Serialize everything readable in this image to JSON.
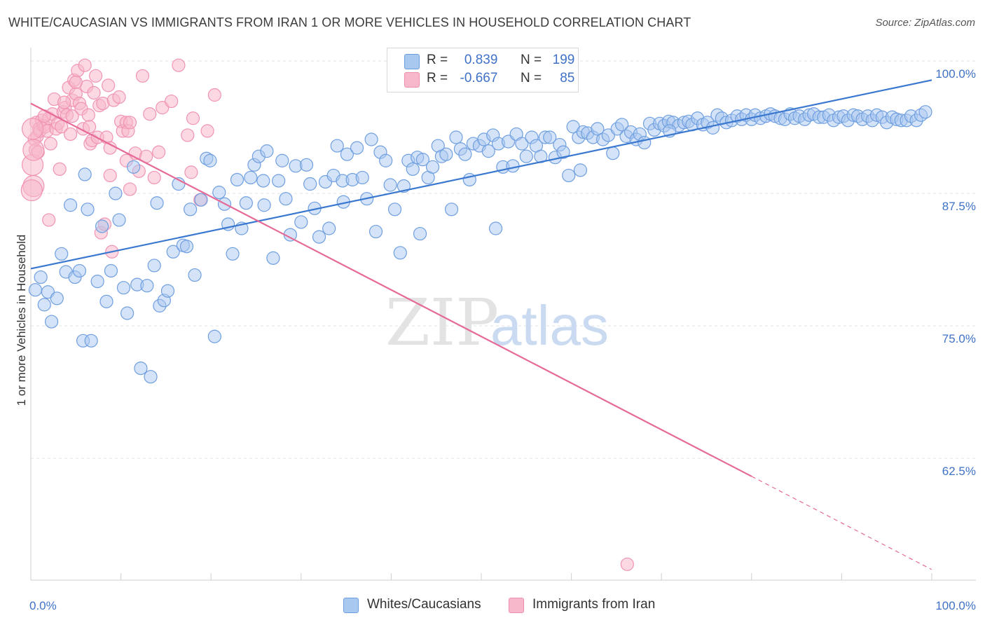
{
  "title": "WHITE/CAUCASIAN VS IMMIGRANTS FROM IRAN 1 OR MORE VEHICLES IN HOUSEHOLD CORRELATION CHART",
  "source": "Source: ZipAtlas.com",
  "watermark": {
    "zip": "ZIP",
    "atlas": "atlas"
  },
  "legend": {
    "r_label": "R =",
    "n_label": "N =",
    "rows": [
      {
        "r": "0.839",
        "n": "199",
        "fill": "#a9c8f0",
        "stroke": "#6d9ee0"
      },
      {
        "r": "-0.667",
        "n": "85",
        "fill": "#f8b8cb",
        "stroke": "#ee8fab"
      }
    ]
  },
  "bottom_legend": [
    {
      "label": "Whites/Caucasians",
      "fill": "#a9c8f0",
      "stroke": "#6d9ee0"
    },
    {
      "label": "Immigrants from Iran",
      "fill": "#f8b8cb",
      "stroke": "#ee8fab"
    }
  ],
  "chart_data": {
    "type": "scatter",
    "title": "WHITE/CAUCASIAN VS IMMIGRANTS FROM IRAN 1 OR MORE VEHICLES IN HOUSEHOLD CORRELATION CHART",
    "xlabel": "",
    "ylabel": "1 or more Vehicles in Household",
    "xlim": [
      0,
      100
    ],
    "ylim": [
      51,
      101
    ],
    "x_tick_labels": [
      "0.0%",
      "100.0%"
    ],
    "y_ticks": [
      100,
      87.5,
      75,
      62.5
    ],
    "y_tick_labels": [
      "100.0%",
      "87.5%",
      "75.0%",
      "62.5%"
    ],
    "grid": true,
    "colors": {
      "blue": "#3a78d0",
      "pink": "#e56a98",
      "blue_fill": "#a9c8f0",
      "pink_fill": "#f8b8cb"
    },
    "series": [
      {
        "name": "Whites/Caucasians",
        "color": "#3a78d0",
        "trend": {
          "x0": 0,
          "y0": 80.4,
          "x1": 100,
          "y1": 98.2
        },
        "points": [
          [
            0.5,
            78.4
          ],
          [
            1.1,
            79.6
          ],
          [
            1.5,
            77.0
          ],
          [
            1.9,
            78.2
          ],
          [
            2.3,
            75.4
          ],
          [
            2.9,
            77.6
          ],
          [
            3.4,
            81.8
          ],
          [
            3.9,
            80.1
          ],
          [
            4.4,
            86.4
          ],
          [
            4.9,
            79.6
          ],
          [
            5.4,
            80.2
          ],
          [
            5.8,
            73.6
          ],
          [
            6.3,
            86.0
          ],
          [
            6.7,
            73.6
          ],
          [
            7.4,
            79.2
          ],
          [
            7.9,
            84.4
          ],
          [
            8.4,
            77.3
          ],
          [
            8.9,
            80.2
          ],
          [
            9.4,
            87.5
          ],
          [
            9.8,
            85.0
          ],
          [
            10.3,
            78.6
          ],
          [
            10.7,
            76.2
          ],
          [
            11.4,
            90.0
          ],
          [
            11.8,
            78.9
          ],
          [
            12.2,
            71.0
          ],
          [
            12.9,
            78.8
          ],
          [
            13.3,
            70.2
          ],
          [
            13.7,
            80.7
          ],
          [
            14.3,
            76.9
          ],
          [
            14.8,
            77.4
          ],
          [
            15.2,
            78.3
          ],
          [
            15.8,
            82.0
          ],
          [
            16.4,
            88.4
          ],
          [
            16.9,
            82.6
          ],
          [
            17.3,
            82.5
          ],
          [
            17.7,
            86.0
          ],
          [
            18.2,
            79.8
          ],
          [
            18.9,
            86.9
          ],
          [
            19.5,
            90.8
          ],
          [
            19.9,
            90.6
          ],
          [
            20.4,
            74.0
          ],
          [
            20.9,
            87.6
          ],
          [
            21.5,
            86.5
          ],
          [
            21.9,
            84.6
          ],
          [
            22.4,
            81.8
          ],
          [
            22.9,
            88.8
          ],
          [
            23.4,
            84.2
          ],
          [
            23.9,
            86.6
          ],
          [
            24.4,
            89.0
          ],
          [
            24.8,
            90.2
          ],
          [
            25.3,
            91.0
          ],
          [
            25.8,
            88.7
          ],
          [
            26.2,
            91.5
          ],
          [
            26.9,
            81.4
          ],
          [
            27.5,
            88.7
          ],
          [
            27.9,
            90.6
          ],
          [
            28.3,
            87.0
          ],
          [
            28.8,
            83.6
          ],
          [
            29.4,
            90.1
          ],
          [
            30.0,
            84.8
          ],
          [
            30.6,
            90.2
          ],
          [
            31.0,
            88.4
          ],
          [
            31.5,
            86.1
          ],
          [
            32.0,
            83.4
          ],
          [
            32.7,
            88.6
          ],
          [
            33.1,
            84.2
          ],
          [
            33.6,
            89.2
          ],
          [
            34.0,
            92.0
          ],
          [
            34.6,
            88.7
          ],
          [
            35.1,
            91.2
          ],
          [
            35.7,
            88.8
          ],
          [
            36.2,
            91.8
          ],
          [
            36.8,
            89.0
          ],
          [
            37.3,
            87.0
          ],
          [
            37.8,
            92.6
          ],
          [
            38.3,
            83.9
          ],
          [
            38.8,
            91.4
          ],
          [
            39.4,
            90.6
          ],
          [
            39.9,
            88.3
          ],
          [
            40.4,
            86.0
          ],
          [
            41.0,
            81.9
          ],
          [
            41.4,
            88.2
          ],
          [
            41.9,
            90.6
          ],
          [
            42.4,
            89.8
          ],
          [
            42.9,
            90.9
          ],
          [
            43.5,
            90.7
          ],
          [
            44.1,
            89.0
          ],
          [
            44.6,
            90.0
          ],
          [
            45.2,
            92.0
          ],
          [
            45.6,
            91.0
          ],
          [
            46.1,
            91.2
          ],
          [
            46.7,
            86.0
          ],
          [
            47.2,
            92.8
          ],
          [
            47.7,
            91.7
          ],
          [
            48.2,
            91.2
          ],
          [
            48.7,
            88.8
          ],
          [
            49.1,
            92.2
          ],
          [
            49.8,
            92.0
          ],
          [
            50.3,
            92.6
          ],
          [
            50.8,
            91.5
          ],
          [
            51.3,
            93.0
          ],
          [
            51.9,
            92.2
          ],
          [
            52.4,
            90.0
          ],
          [
            53.0,
            92.4
          ],
          [
            53.5,
            90.1
          ],
          [
            53.9,
            93.1
          ],
          [
            54.5,
            92.2
          ],
          [
            55.0,
            91.0
          ],
          [
            55.6,
            92.8
          ],
          [
            56.1,
            92.0
          ],
          [
            56.6,
            91.0
          ],
          [
            57.1,
            92.8
          ],
          [
            57.6,
            92.8
          ],
          [
            58.2,
            90.9
          ],
          [
            58.7,
            92.1
          ],
          [
            59.1,
            91.4
          ],
          [
            59.7,
            89.2
          ],
          [
            60.2,
            93.8
          ],
          [
            60.8,
            92.8
          ],
          [
            61.3,
            93.3
          ],
          [
            61.8,
            93.2
          ],
          [
            62.4,
            92.8
          ],
          [
            62.9,
            93.6
          ],
          [
            63.5,
            92.6
          ],
          [
            64.1,
            93.0
          ],
          [
            64.6,
            91.3
          ],
          [
            65.1,
            93.6
          ],
          [
            65.6,
            94.0
          ],
          [
            66.1,
            92.9
          ],
          [
            66.6,
            93.3
          ],
          [
            67.2,
            92.6
          ],
          [
            67.6,
            93.1
          ],
          [
            68.1,
            92.3
          ],
          [
            68.7,
            94.1
          ],
          [
            69.2,
            93.5
          ],
          [
            69.8,
            94.1
          ],
          [
            70.3,
            93.9
          ],
          [
            70.8,
            94.3
          ],
          [
            71.3,
            94.2
          ],
          [
            71.9,
            93.9
          ],
          [
            72.5,
            94.2
          ],
          [
            73.0,
            94.3
          ],
          [
            73.4,
            94.0
          ],
          [
            74.0,
            94.6
          ],
          [
            74.6,
            94.0
          ],
          [
            75.1,
            94.2
          ],
          [
            75.7,
            93.7
          ],
          [
            76.2,
            94.9
          ],
          [
            76.7,
            94.6
          ],
          [
            77.2,
            94.2
          ],
          [
            77.8,
            94.4
          ],
          [
            78.4,
            94.8
          ],
          [
            78.9,
            94.5
          ],
          [
            79.4,
            94.9
          ],
          [
            80.0,
            94.5
          ],
          [
            80.4,
            94.9
          ],
          [
            81.0,
            94.6
          ],
          [
            81.6,
            94.8
          ],
          [
            82.1,
            95.0
          ],
          [
            82.6,
            94.8
          ],
          [
            83.2,
            94.6
          ],
          [
            83.7,
            94.5
          ],
          [
            84.3,
            95.0
          ],
          [
            84.8,
            94.6
          ],
          [
            85.3,
            94.8
          ],
          [
            85.9,
            94.5
          ],
          [
            86.4,
            94.9
          ],
          [
            86.9,
            95.0
          ],
          [
            87.5,
            94.7
          ],
          [
            88.0,
            94.7
          ],
          [
            88.6,
            94.9
          ],
          [
            89.1,
            94.4
          ],
          [
            89.7,
            94.7
          ],
          [
            90.2,
            94.8
          ],
          [
            90.7,
            94.4
          ],
          [
            91.3,
            94.9
          ],
          [
            91.8,
            94.8
          ],
          [
            92.3,
            94.5
          ],
          [
            92.9,
            94.8
          ],
          [
            93.4,
            94.4
          ],
          [
            93.9,
            94.9
          ],
          [
            94.5,
            94.7
          ],
          [
            95.0,
            94.2
          ],
          [
            95.6,
            94.7
          ],
          [
            96.1,
            94.5
          ],
          [
            96.6,
            94.4
          ],
          [
            97.2,
            94.4
          ],
          [
            97.7,
            94.8
          ],
          [
            98.3,
            94.4
          ],
          [
            98.8,
            94.9
          ],
          [
            99.3,
            95.2
          ],
          [
            6.0,
            89.3
          ],
          [
            14.0,
            86.6
          ],
          [
            25.9,
            86.4
          ],
          [
            43.2,
            83.7
          ],
          [
            61.0,
            89.7
          ],
          [
            70.9,
            93.4
          ],
          [
            34.7,
            86.7
          ],
          [
            51.6,
            84.2
          ]
        ]
      },
      {
        "name": "Immigrants from Iran",
        "color": "#e56a98",
        "trend": {
          "x0": 0,
          "y0": 96.0,
          "x1": 80,
          "y1": 60.8,
          "dash_x1": 100,
          "dash_y1": 52.0
        },
        "points": [
          [
            0.2,
            90.2
          ],
          [
            0.3,
            88.2
          ],
          [
            0.4,
            92.6
          ],
          [
            0.5,
            91.6
          ],
          [
            0.6,
            94.2
          ],
          [
            0.7,
            92.9
          ],
          [
            0.8,
            91.4
          ],
          [
            0.9,
            93.6
          ],
          [
            1.0,
            93.4
          ],
          [
            1.2,
            94.4
          ],
          [
            1.4,
            93.9
          ],
          [
            1.6,
            93.8
          ],
          [
            1.8,
            93.4
          ],
          [
            2.0,
            94.6
          ],
          [
            2.2,
            92.2
          ],
          [
            2.4,
            95.0
          ],
          [
            2.6,
            96.4
          ],
          [
            2.8,
            93.6
          ],
          [
            3.0,
            94.1
          ],
          [
            3.2,
            89.8
          ],
          [
            3.4,
            93.8
          ],
          [
            3.6,
            95.2
          ],
          [
            3.8,
            95.6
          ],
          [
            4.0,
            94.9
          ],
          [
            4.2,
            97.5
          ],
          [
            4.4,
            93.1
          ],
          [
            4.6,
            96.3
          ],
          [
            4.8,
            98.2
          ],
          [
            5.0,
            96.9
          ],
          [
            5.2,
            99.1
          ],
          [
            5.4,
            96.0
          ],
          [
            5.6,
            95.5
          ],
          [
            5.8,
            93.6
          ],
          [
            6.0,
            99.6
          ],
          [
            6.2,
            97.6
          ],
          [
            6.4,
            94.9
          ],
          [
            6.6,
            92.2
          ],
          [
            6.8,
            92.5
          ],
          [
            7.0,
            97.0
          ],
          [
            7.2,
            98.6
          ],
          [
            7.4,
            92.8
          ],
          [
            7.6,
            95.8
          ],
          [
            7.8,
            83.8
          ],
          [
            8.0,
            96.0
          ],
          [
            8.2,
            84.6
          ],
          [
            8.4,
            92.8
          ],
          [
            8.6,
            97.7
          ],
          [
            8.8,
            89.2
          ],
          [
            9.0,
            82.0
          ],
          [
            9.2,
            96.3
          ],
          [
            9.8,
            96.6
          ],
          [
            10.0,
            94.3
          ],
          [
            10.2,
            93.4
          ],
          [
            10.6,
            94.2
          ],
          [
            10.8,
            93.4
          ],
          [
            11.0,
            94.2
          ],
          [
            11.6,
            91.3
          ],
          [
            12.0,
            89.6
          ],
          [
            12.4,
            98.6
          ],
          [
            12.8,
            91.0
          ],
          [
            13.2,
            95.0
          ],
          [
            13.7,
            89.0
          ],
          [
            14.2,
            91.4
          ],
          [
            14.6,
            95.6
          ],
          [
            15.6,
            96.2
          ],
          [
            16.4,
            99.6
          ],
          [
            17.4,
            93.0
          ],
          [
            17.8,
            89.5
          ],
          [
            18.0,
            94.6
          ],
          [
            18.8,
            86.9
          ],
          [
            19.6,
            93.4
          ],
          [
            20.4,
            96.8
          ],
          [
            2.0,
            85.0
          ],
          [
            1.5,
            94.8
          ],
          [
            3.7,
            96.1
          ],
          [
            5.0,
            98.0
          ],
          [
            6.5,
            93.8
          ],
          [
            8.8,
            91.8
          ],
          [
            10.6,
            90.6
          ],
          [
            11.0,
            87.9
          ],
          [
            0.3,
            91.6
          ],
          [
            0.2,
            93.6
          ],
          [
            0.1,
            87.8
          ],
          [
            66.2,
            52.5
          ],
          [
            4.6,
            94.8
          ]
        ]
      }
    ]
  }
}
